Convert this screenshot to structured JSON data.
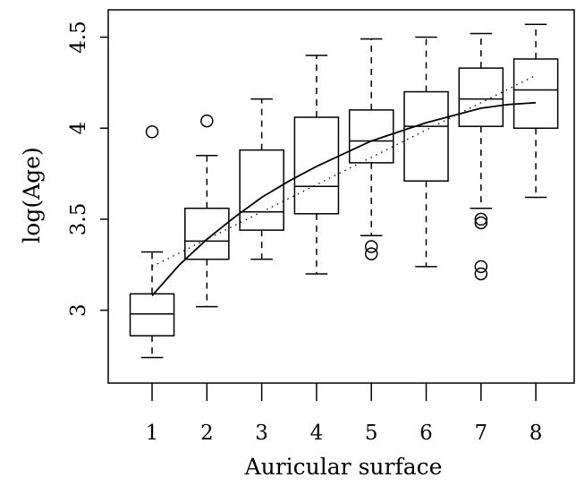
{
  "chart_data": {
    "type": "box",
    "xlabel": "Auricular surface",
    "ylabel": "log(Age)",
    "categories": [
      "1",
      "2",
      "3",
      "4",
      "5",
      "6",
      "7",
      "8"
    ],
    "y_ticks": [
      "3",
      "3.5",
      "4",
      "4.5"
    ],
    "y_tick_values": [
      3,
      3.5,
      4,
      4.5
    ],
    "xlim": [
      0.2,
      8.7
    ],
    "ylim": [
      2.6,
      4.65
    ],
    "grid": false,
    "boxes": [
      {
        "category": "1",
        "whisker_low": 2.74,
        "q1": 2.86,
        "median": 2.98,
        "q3": 3.09,
        "whisker_high": 3.32,
        "outliers": [
          3.98
        ]
      },
      {
        "category": "2",
        "whisker_low": 3.02,
        "q1": 3.28,
        "median": 3.38,
        "q3": 3.56,
        "whisker_high": 3.85,
        "outliers": [
          4.04
        ]
      },
      {
        "category": "3",
        "whisker_low": 3.28,
        "q1": 3.44,
        "median": 3.54,
        "q3": 3.88,
        "whisker_high": 4.16,
        "outliers": []
      },
      {
        "category": "4",
        "whisker_low": 3.2,
        "q1": 3.53,
        "median": 3.68,
        "q3": 4.06,
        "whisker_high": 4.4,
        "outliers": []
      },
      {
        "category": "5",
        "whisker_low": 3.41,
        "q1": 3.81,
        "median": 3.93,
        "q3": 4.1,
        "whisker_high": 4.49,
        "outliers": [
          3.31,
          3.35
        ]
      },
      {
        "category": "6",
        "whisker_low": 3.24,
        "q1": 3.71,
        "median": 4.01,
        "q3": 4.2,
        "whisker_high": 4.5,
        "outliers": []
      },
      {
        "category": "7",
        "whisker_low": 3.56,
        "q1": 4.01,
        "median": 4.16,
        "q3": 4.33,
        "whisker_high": 4.52,
        "outliers": [
          3.2,
          3.24,
          3.48,
          3.5
        ]
      },
      {
        "category": "8",
        "whisker_low": 3.62,
        "q1": 4.0,
        "median": 4.21,
        "q3": 4.38,
        "whisker_high": 4.57,
        "outliers": []
      }
    ],
    "curves": [
      {
        "style": "solid",
        "x": [
          1,
          1.5,
          2,
          2.5,
          3,
          3.5,
          4,
          4.5,
          5,
          5.5,
          6,
          6.5,
          7,
          7.5,
          8
        ],
        "y": [
          3.08,
          3.25,
          3.39,
          3.51,
          3.62,
          3.71,
          3.79,
          3.86,
          3.93,
          3.98,
          4.03,
          4.07,
          4.11,
          4.13,
          4.14
        ]
      },
      {
        "style": "dotted",
        "x": [
          1,
          8
        ],
        "y": [
          3.24,
          4.29
        ]
      }
    ]
  }
}
